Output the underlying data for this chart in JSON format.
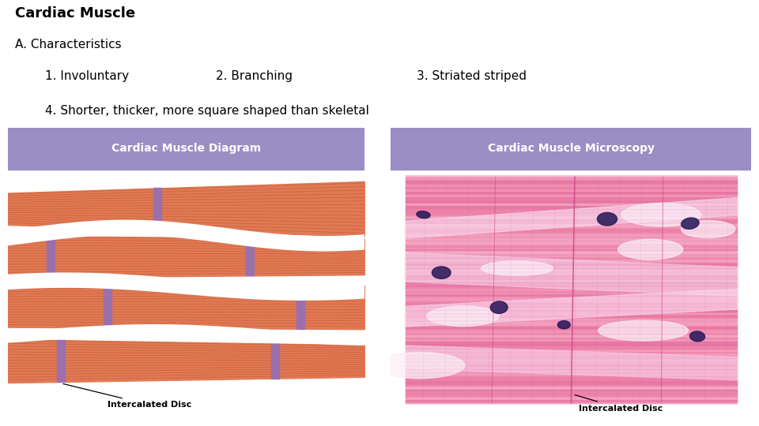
{
  "title": "Cardiac Muscle",
  "subtitle_a": "A. Characteristics",
  "line1_col1": "1. Involuntary",
  "line1_col2": "2. Branching",
  "line1_col3": "3. Striated striped",
  "line2": "4. Shorter, thicker, more square shaped than skeletal",
  "left_panel_title": "Cardiac Muscle Diagram",
  "right_panel_title": "Cardiac Muscle Microscopy",
  "annotation_left": "Intercalated Disc",
  "annotation_right": "Intercalated Disc",
  "bg_color": "#ffffff",
  "panel_header_color": "#9b8ec4",
  "panel_header_text_color": "#ffffff",
  "muscle_orange": "#e07a55",
  "muscle_stripe_dark": "#c85a35",
  "intercalated_disc_color": "#9370b8",
  "title_fontsize": 13,
  "text_fontsize": 11,
  "panel_title_fontsize": 10,
  "annot_fontsize": 8
}
